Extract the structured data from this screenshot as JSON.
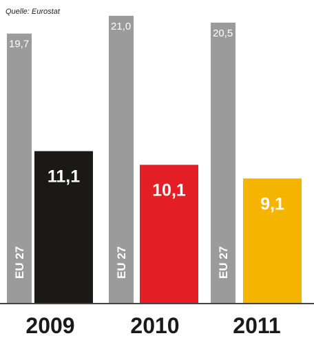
{
  "source_note": "Quelle: Eurostat",
  "chart_data": {
    "type": "bar",
    "categories": [
      "2009",
      "2010",
      "2011"
    ],
    "series": [
      {
        "name": "EU 27",
        "values": [
          19.7,
          21.0,
          20.5
        ],
        "labels": [
          "19,7",
          "21,0",
          "20,5"
        ],
        "color": "#9b9b9b"
      },
      {
        "values": [
          11.1,
          10.1,
          9.1
        ],
        "labels": [
          "11,1",
          "10,1",
          "9,1"
        ],
        "colors": [
          "#1b1918",
          "#e31e24",
          "#f5b400"
        ]
      }
    ],
    "ylim": [
      0,
      21.5
    ],
    "grid": false,
    "title": "",
    "xlabel": "",
    "ylabel": ""
  }
}
